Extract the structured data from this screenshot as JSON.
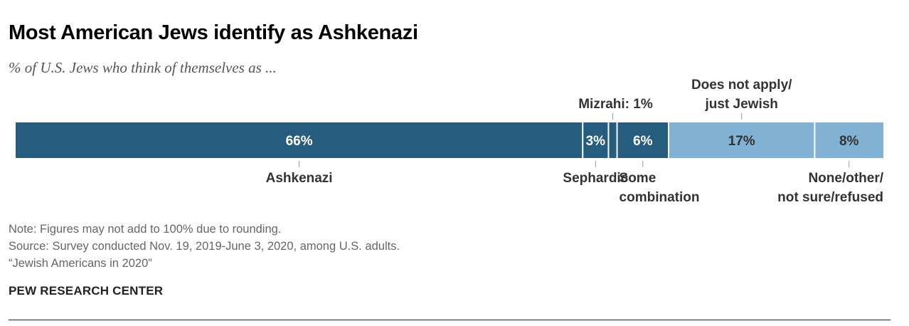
{
  "chart_data": {
    "type": "bar",
    "stacked": true,
    "orientation": "horizontal",
    "title": "Most American Jews identify as Ashkenazi",
    "subtitle": "% of U.S. Jews who think of themselves as ...",
    "unit": "%",
    "segments": [
      {
        "label_lines": [
          "Ashkenazi"
        ],
        "value": 66,
        "value_label": "66%",
        "color": "#265c7e",
        "label_position": "below"
      },
      {
        "label_lines": [
          "Sephardic"
        ],
        "value": 3,
        "value_label": "3%",
        "color": "#265c7e",
        "label_position": "below"
      },
      {
        "label_lines": [
          "Mizrahi: 1%"
        ],
        "value": 1,
        "value_label": "",
        "color": "#265c7e",
        "label_position": "above"
      },
      {
        "label_lines": [
          "Some",
          "combination"
        ],
        "value": 6,
        "value_label": "6%",
        "color": "#265c7e",
        "label_position": "below"
      },
      {
        "label_lines": [
          "Does not apply/",
          "just Jewish"
        ],
        "value": 17,
        "value_label": "17%",
        "color": "#82b2d3",
        "label_position": "above"
      },
      {
        "label_lines": [
          "None/other/",
          "not sure/refused"
        ],
        "value": 8,
        "value_label": "8%",
        "color": "#82b2d3",
        "label_position": "below"
      }
    ]
  },
  "notes": [
    "Note: Figures may not add to 100% due to rounding.",
    "Source: Survey conducted Nov. 19, 2019-June 3, 2020, among U.S. adults.",
    "“Jewish Americans in 2020”"
  ],
  "brand": "PEW RESEARCH CENTER"
}
